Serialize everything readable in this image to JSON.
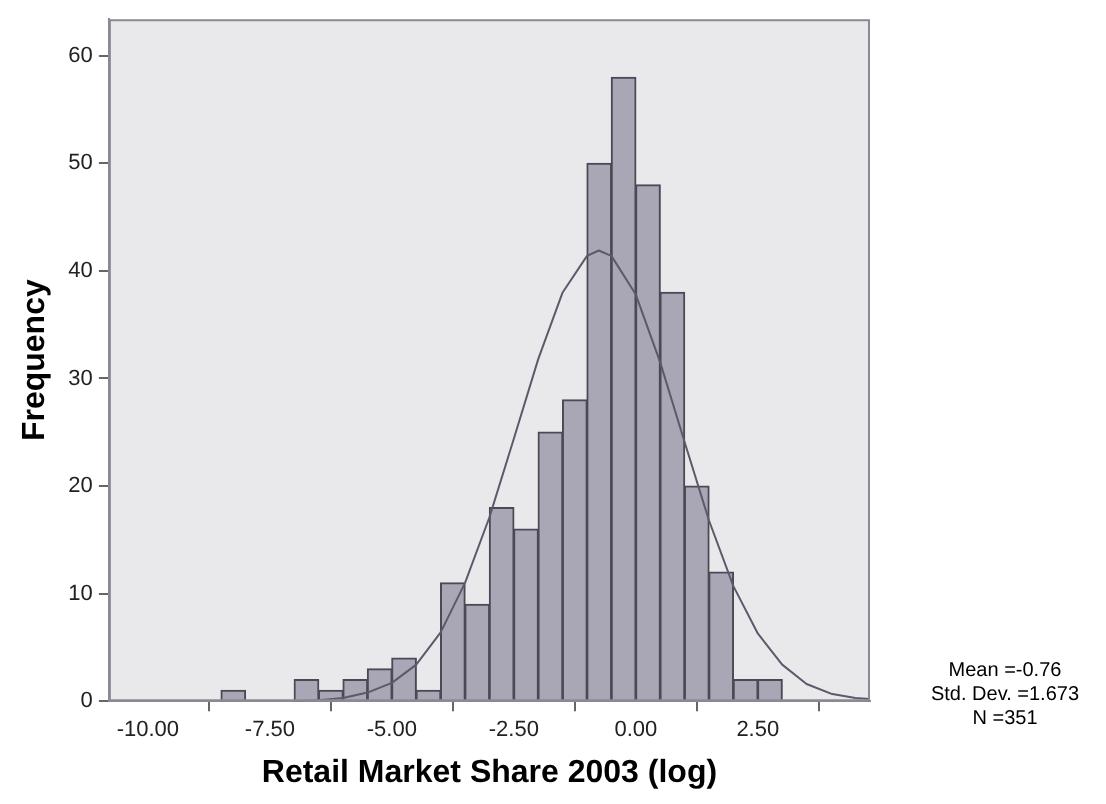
{
  "chart_data": {
    "type": "histogram",
    "xlabel": "Retail Market Share 2003 (log)",
    "ylabel": "Frequency",
    "bins": [
      -8.5,
      -8,
      -7.5,
      -7,
      -6.5,
      -6,
      -5.5,
      -5,
      -4.5,
      -4,
      -3.5,
      -3,
      -2.5,
      -2,
      -1.5,
      -1,
      -0.5,
      0,
      0.5,
      1,
      1.5,
      2,
      2.5,
      3
    ],
    "values": [
      1,
      0,
      0,
      2,
      1,
      2,
      3,
      4,
      1,
      11,
      9,
      18,
      16,
      25,
      28,
      50,
      58,
      48,
      38,
      20,
      12,
      2,
      2
    ],
    "color": "#a9a7b6",
    "series": [
      {
        "type": "line",
        "color": "#5a5a6a",
        "x": [
          -7,
          -6.5,
          -6,
          -5.5,
          -5,
          -4.5,
          -4,
          -3.5,
          -3,
          -2.5,
          -2,
          -1.5,
          -1,
          -0.76,
          -0.5,
          0,
          0.5,
          1,
          1.5,
          2,
          2.5,
          3,
          3.5,
          4,
          4.5,
          4.8
        ],
        "values": [
          0,
          0.1,
          0.3,
          0.8,
          1.7,
          3.4,
          6.4,
          11,
          17.1,
          24.4,
          31.8,
          38,
          41.4,
          41.9,
          41.4,
          37.8,
          31.5,
          24.1,
          16.8,
          10.7,
          6.3,
          3.4,
          1.6,
          0.7,
          0.3,
          0.2
        ]
      }
    ],
    "xlim": [
      -10.8,
      4.8
    ],
    "ylim": [
      0,
      63.4
    ],
    "xticks": [
      {
        "value": -10,
        "label": "-10.00"
      },
      {
        "value": -7.5,
        "label": "-7.50"
      },
      {
        "value": -5,
        "label": "-5.00"
      },
      {
        "value": -2.5,
        "label": "-2.50"
      },
      {
        "value": 0,
        "label": "0.00"
      },
      {
        "value": 2.5,
        "label": "2.50"
      }
    ],
    "yticks": [
      0,
      10,
      20,
      30,
      40,
      50,
      60
    ],
    "grid": false,
    "legend": false,
    "marker": "none",
    "line_style": "solid",
    "annotations": [
      "Mean =-0.76",
      "Std. Dev. =1.673",
      "N =351"
    ]
  }
}
